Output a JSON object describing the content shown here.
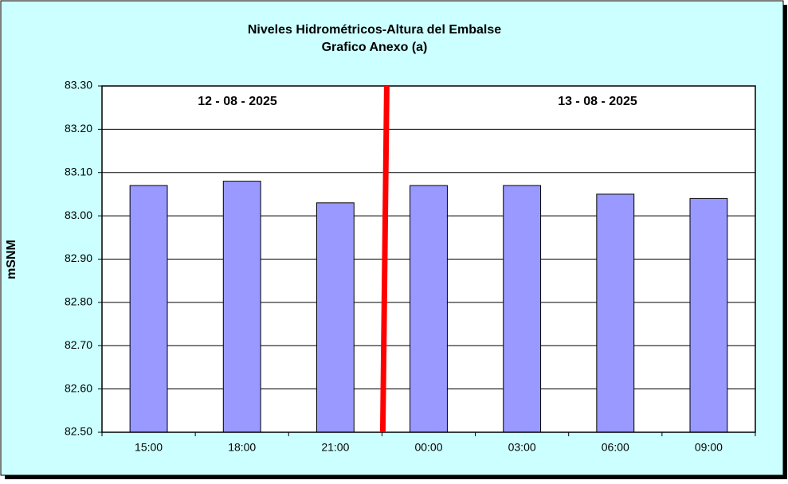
{
  "chart_data": {
    "type": "bar",
    "title": "Niveles Hidrométricos-Altura del Embalse",
    "subtitle": "Grafico Anexo (a)",
    "y_label": "mSNM",
    "annotations": [
      "12 - 08 - 2025",
      "13 - 08 - 2025"
    ],
    "categories": [
      "15:00",
      "18:00",
      "21:00",
      "00:00",
      "03:00",
      "06:00",
      "09:00"
    ],
    "values": [
      83.07,
      83.08,
      83.03,
      83.07,
      83.07,
      83.05,
      83.04
    ],
    "color": "#9999ff",
    "ylim": [
      82.5,
      83.3
    ],
    "yticks": [
      {
        "value": 82.5,
        "label": "82.50"
      },
      {
        "value": 82.6,
        "label": "82.60"
      },
      {
        "value": 82.7,
        "label": "82.70"
      },
      {
        "value": 82.8,
        "label": "82.80"
      },
      {
        "value": 82.9,
        "label": "82.90"
      },
      {
        "value": 83.0,
        "label": "83.00"
      },
      {
        "value": 83.1,
        "label": "83.10"
      },
      {
        "value": 83.2,
        "label": "83.20"
      },
      {
        "value": 83.3,
        "label": "83.30"
      }
    ],
    "grid": true
  }
}
